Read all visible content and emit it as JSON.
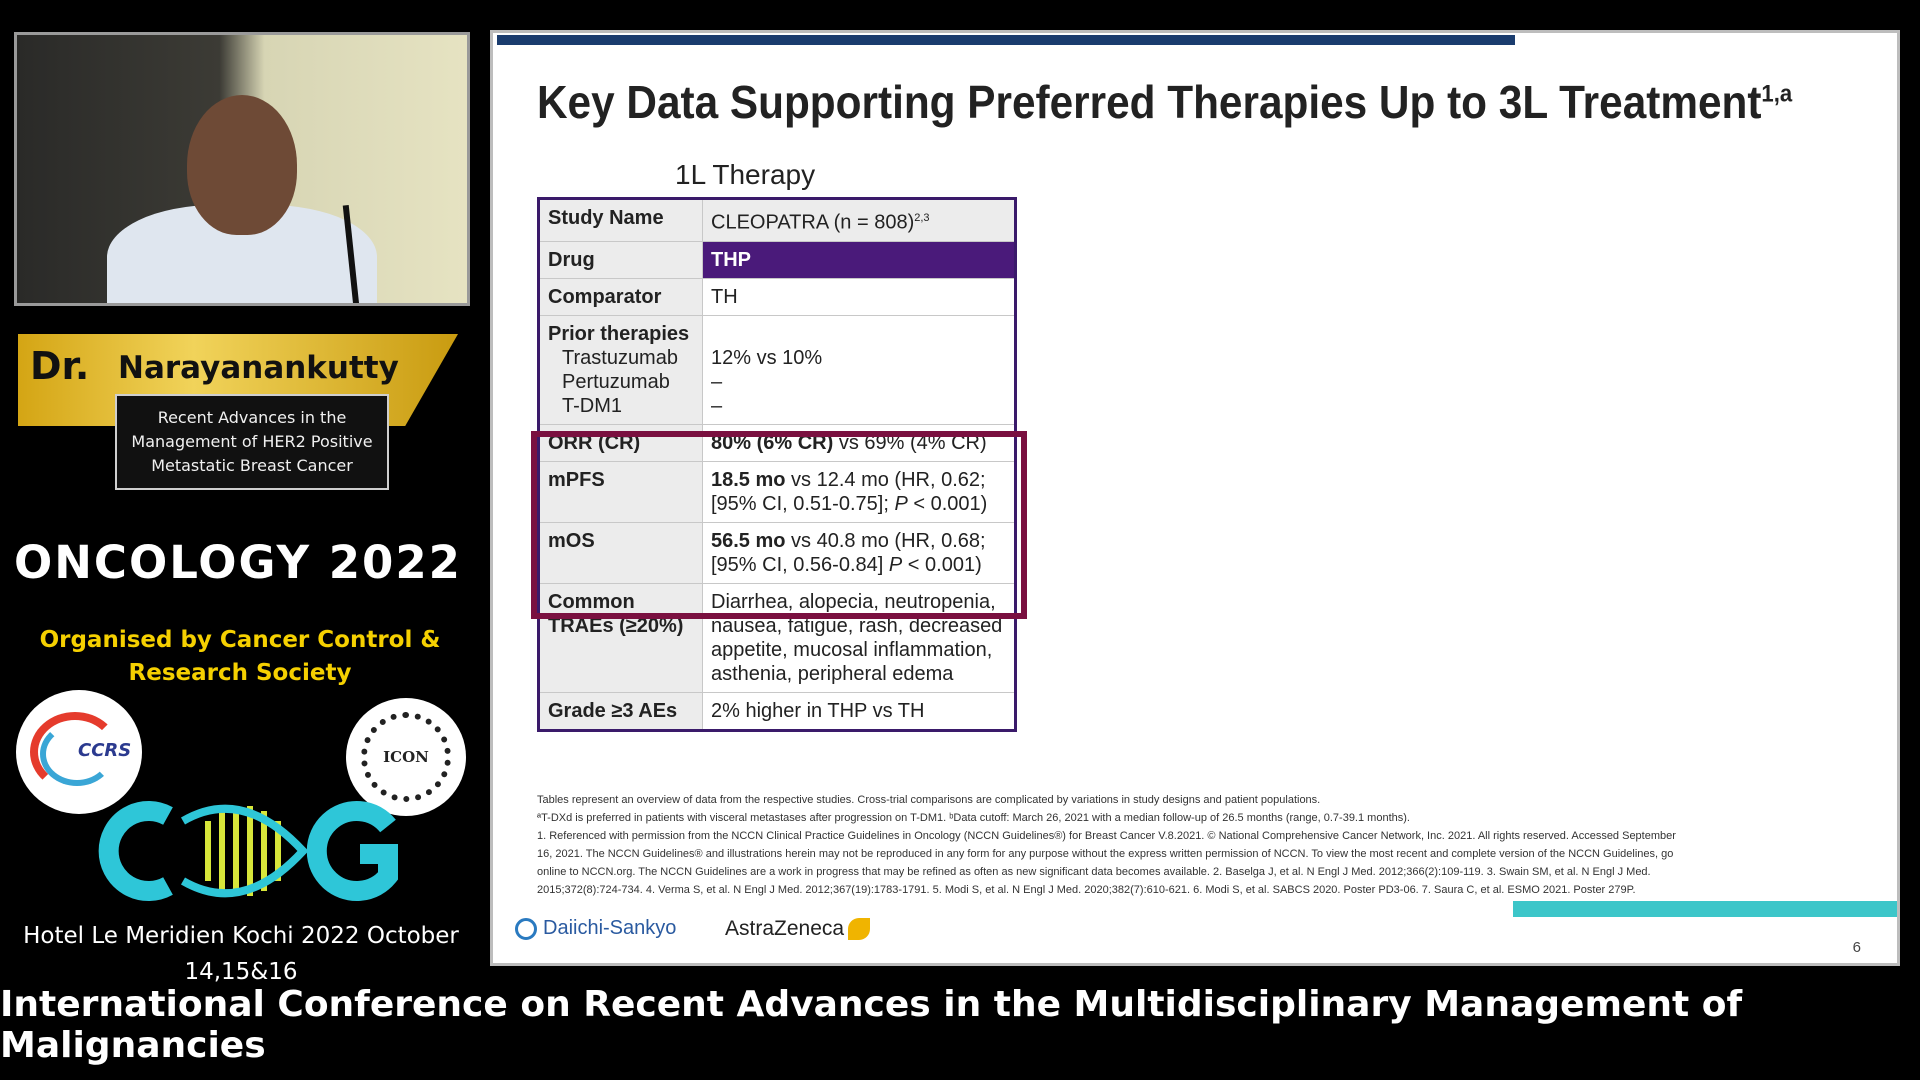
{
  "speaker": {
    "prefix": "Dr.",
    "name": "Narayanankutty",
    "talk_title": "Recent Advances in the Management of HER2 Positive Metastatic Breast Cancer"
  },
  "event": {
    "title": "ONCOLOGY 2022",
    "organiser": "Organised by   Cancer Control & Research Society",
    "logos": {
      "ccrs": "CCRS",
      "icon": "ICON"
    },
    "venue": "Hotel Le Meridien  Kochi  2022 October 14,15&16"
  },
  "ticker": "International Conference on Recent Advances in the Multidisciplinary Management of Malignancies",
  "slide": {
    "title": "Key Data Supporting Preferred Therapies Up to 3L Treatment",
    "title_sup": "1,a",
    "therapy_heading": "1L Therapy",
    "table": {
      "study_label": "Study Name",
      "study_value": "CLEOPATRA (n = 808)",
      "study_sup": "2,3",
      "drug_label": "Drug",
      "drug_value": "THP",
      "comparator_label": "Comparator",
      "comparator_value": "TH",
      "prior_label": "Prior therapies",
      "prior_items": [
        "Trastuzumab",
        "Pertuzumab",
        "T-DM1"
      ],
      "prior_values": [
        "12% vs 10%",
        "–",
        "–"
      ],
      "orr_label": "ORR (CR)",
      "orr_bold": "80% (6% CR)",
      "orr_rest": " vs 69% (4% CR)",
      "mpfs_label": "mPFS",
      "mpfs_bold": "18.5 mo",
      "mpfs_rest": " vs 12.4 mo (HR, 0.62; [95% CI, 0.51-0.75]; ",
      "mpfs_p": "P",
      "mpfs_tail": " < 0.001)",
      "mos_label": "mOS",
      "mos_bold": "56.5 mo",
      "mos_rest": " vs 40.8 mo (HR, 0.68; [95% CI, 0.56-0.84] ",
      "mos_p": "P",
      "mos_tail": " < 0.001)",
      "traes_label": "Common TRAEs (≥20%)",
      "traes_value": "Diarrhea, alopecia, neutropenia, nausea, fatigue, rash, decreased appetite, mucosal inflammation, asthenia, peripheral edema",
      "grade_label": "Grade ≥3 AEs",
      "grade_value": "2% higher in THP vs TH"
    },
    "footnotes": [
      "Tables represent an overview of data from the respective studies. Cross-trial comparisons are complicated by variations in study designs and patient populations.",
      "ªT-DXd is preferred in patients with visceral metastases after progression on T-DM1. ᵇData cutoff: March 26, 2021 with a median follow-up of 26.5 months (range, 0.7-39.1 months).",
      "1. Referenced with permission from the NCCN Clinical Practice Guidelines in Oncology (NCCN Guidelines®) for Breast Cancer V.8.2021. © National Comprehensive Cancer Network, Inc. 2021. All rights reserved. Accessed September",
      "16, 2021. The NCCN Guidelines® and illustrations herein may not be reproduced in any form for any purpose without the express written permission of NCCN. To view the most recent and complete version of the NCCN Guidelines, go",
      "online to NCCN.org. The NCCN Guidelines are a work in progress that may be refined as often as new significant data becomes available. 2. Baselga J, et al. N Engl J Med. 2012;366(2):109-119. 3. Swain SM, et al. N Engl J Med.",
      "2015;372(8):724-734. 4. Verma S, et al. N Engl J Med. 2012;367(19):1783-1791. 5. Modi S, et al. N Engl J Med. 2020;382(7):610-621. 6. Modi S, et al. SABCS 2020. Poster PD3-06. 7. Saura C, et al. ESMO 2021. Poster 279P."
    ],
    "logo_daiichi": "Daiichi-Sankyo",
    "logo_az": "AstraZeneca",
    "page_number": "6",
    "colors": {
      "drug_bg": "#4a1a7a",
      "highlight": "#7a1040",
      "teal": "#3cc6c9",
      "gold": "#f5d000"
    }
  }
}
